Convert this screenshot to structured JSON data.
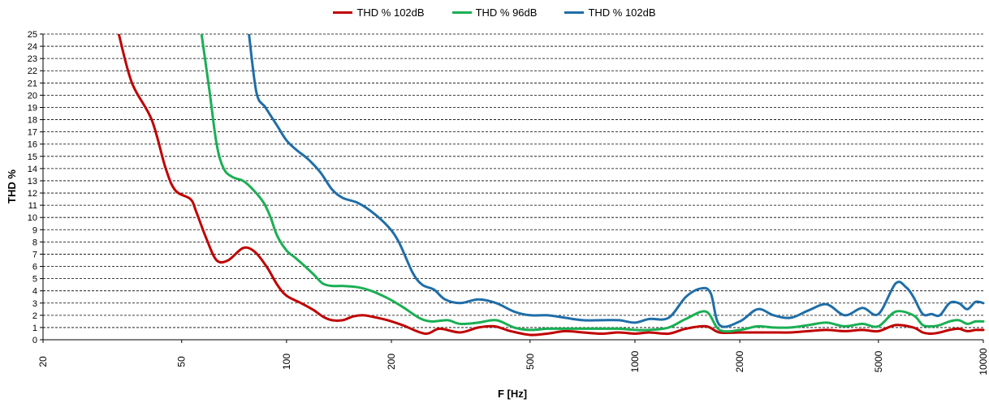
{
  "chart_data": {
    "type": "line",
    "xlabel": "F [Hz]",
    "ylabel": "THD %",
    "x_scale": "log",
    "xlim": [
      20,
      10000
    ],
    "ylim": [
      0,
      25
    ],
    "x_ticks": [
      20,
      50,
      100,
      200,
      500,
      1000,
      2000,
      5000,
      10000
    ],
    "y_ticks": [
      0,
      1,
      2,
      3,
      4,
      5,
      6,
      7,
      8,
      9,
      10,
      11,
      12,
      13,
      14,
      15,
      16,
      17,
      18,
      19,
      20,
      21,
      22,
      23,
      24,
      25
    ],
    "grid": "horizontal dashed",
    "legend_position": "top-center",
    "series": [
      {
        "name": "THD % 102dB",
        "color": "#c00000",
        "points": [
          [
            33,
            25
          ],
          [
            36,
            21
          ],
          [
            41,
            18
          ],
          [
            45,
            14
          ],
          [
            48,
            12.2
          ],
          [
            53,
            11.5
          ],
          [
            55,
            10.5
          ],
          [
            59,
            8.2
          ],
          [
            63,
            6.5
          ],
          [
            68,
            6.5
          ],
          [
            75,
            7.5
          ],
          [
            81,
            7.2
          ],
          [
            88,
            5.9
          ],
          [
            94,
            4.5
          ],
          [
            100,
            3.6
          ],
          [
            110,
            3.0
          ],
          [
            120,
            2.4
          ],
          [
            127,
            1.9
          ],
          [
            135,
            1.6
          ],
          [
            145,
            1.6
          ],
          [
            155,
            1.9
          ],
          [
            165,
            2.0
          ],
          [
            175,
            1.9
          ],
          [
            195,
            1.6
          ],
          [
            215,
            1.2
          ],
          [
            250,
            0.5
          ],
          [
            275,
            0.9
          ],
          [
            315,
            0.6
          ],
          [
            355,
            1.0
          ],
          [
            395,
            1.1
          ],
          [
            440,
            0.7
          ],
          [
            500,
            0.4
          ],
          [
            560,
            0.5
          ],
          [
            630,
            0.7
          ],
          [
            710,
            0.6
          ],
          [
            800,
            0.5
          ],
          [
            900,
            0.6
          ],
          [
            1000,
            0.5
          ],
          [
            1100,
            0.6
          ],
          [
            1250,
            0.5
          ],
          [
            1400,
            0.9
          ],
          [
            1600,
            1.1
          ],
          [
            1750,
            0.6
          ],
          [
            2000,
            0.6
          ],
          [
            2250,
            0.6
          ],
          [
            2500,
            0.6
          ],
          [
            2800,
            0.6
          ],
          [
            3150,
            0.7
          ],
          [
            3550,
            0.8
          ],
          [
            4000,
            0.7
          ],
          [
            4500,
            0.8
          ],
          [
            5000,
            0.7
          ],
          [
            5600,
            1.2
          ],
          [
            6300,
            1.0
          ],
          [
            6700,
            0.6
          ],
          [
            7100,
            0.5
          ],
          [
            7500,
            0.6
          ],
          [
            8000,
            0.8
          ],
          [
            8500,
            0.9
          ],
          [
            9000,
            0.7
          ],
          [
            9500,
            0.8
          ],
          [
            10000,
            0.8
          ]
        ]
      },
      {
        "name": "THD % 96dB",
        "color": "#1aaf54",
        "points": [
          [
            57,
            25
          ],
          [
            60,
            20.5
          ],
          [
            63,
            16
          ],
          [
            66,
            14
          ],
          [
            70,
            13.3
          ],
          [
            75,
            13.0
          ],
          [
            80,
            12.3
          ],
          [
            86,
            11.2
          ],
          [
            90,
            10
          ],
          [
            94,
            8.5
          ],
          [
            100,
            7.3
          ],
          [
            106,
            6.7
          ],
          [
            113,
            6.0
          ],
          [
            120,
            5.3
          ],
          [
            127,
            4.6
          ],
          [
            135,
            4.4
          ],
          [
            145,
            4.4
          ],
          [
            160,
            4.3
          ],
          [
            175,
            4.0
          ],
          [
            195,
            3.4
          ],
          [
            215,
            2.7
          ],
          [
            240,
            1.8
          ],
          [
            260,
            1.5
          ],
          [
            290,
            1.6
          ],
          [
            315,
            1.3
          ],
          [
            355,
            1.4
          ],
          [
            400,
            1.6
          ],
          [
            450,
            1.0
          ],
          [
            500,
            0.8
          ],
          [
            560,
            0.9
          ],
          [
            630,
            0.9
          ],
          [
            710,
            0.9
          ],
          [
            800,
            0.9
          ],
          [
            900,
            0.9
          ],
          [
            1000,
            0.8
          ],
          [
            1100,
            0.8
          ],
          [
            1250,
            1.0
          ],
          [
            1400,
            1.7
          ],
          [
            1600,
            2.3
          ],
          [
            1750,
            0.8
          ],
          [
            2000,
            0.8
          ],
          [
            2250,
            1.1
          ],
          [
            2500,
            1.0
          ],
          [
            2800,
            1.0
          ],
          [
            3150,
            1.2
          ],
          [
            3550,
            1.4
          ],
          [
            4000,
            1.1
          ],
          [
            4500,
            1.3
          ],
          [
            5000,
            1.1
          ],
          [
            5600,
            2.3
          ],
          [
            6300,
            2.0
          ],
          [
            6700,
            1.2
          ],
          [
            7100,
            1.1
          ],
          [
            7500,
            1.2
          ],
          [
            8000,
            1.5
          ],
          [
            8500,
            1.6
          ],
          [
            9000,
            1.3
          ],
          [
            9500,
            1.5
          ],
          [
            10000,
            1.5
          ]
        ]
      },
      {
        "name": "THD % 102dB",
        "color": "#1f6ea8",
        "points": [
          [
            78,
            25
          ],
          [
            82,
            20.2
          ],
          [
            87,
            19
          ],
          [
            94,
            17.5
          ],
          [
            100,
            16.3
          ],
          [
            107,
            15.5
          ],
          [
            115,
            14.8
          ],
          [
            125,
            13.7
          ],
          [
            135,
            12.3
          ],
          [
            145,
            11.6
          ],
          [
            160,
            11.2
          ],
          [
            175,
            10.5
          ],
          [
            195,
            9.3
          ],
          [
            210,
            8.0
          ],
          [
            230,
            5.5
          ],
          [
            245,
            4.5
          ],
          [
            265,
            4.1
          ],
          [
            285,
            3.3
          ],
          [
            315,
            3.0
          ],
          [
            355,
            3.3
          ],
          [
            400,
            3.0
          ],
          [
            450,
            2.3
          ],
          [
            500,
            2.0
          ],
          [
            560,
            2.0
          ],
          [
            630,
            1.8
          ],
          [
            710,
            1.6
          ],
          [
            800,
            1.6
          ],
          [
            900,
            1.6
          ],
          [
            1000,
            1.4
          ],
          [
            1100,
            1.7
          ],
          [
            1250,
            1.8
          ],
          [
            1400,
            3.5
          ],
          [
            1550,
            4.2
          ],
          [
            1650,
            3.8
          ],
          [
            1750,
            1.2
          ],
          [
            2000,
            1.5
          ],
          [
            2250,
            2.5
          ],
          [
            2500,
            2.0
          ],
          [
            2800,
            1.8
          ],
          [
            3150,
            2.4
          ],
          [
            3550,
            2.9
          ],
          [
            4000,
            2.0
          ],
          [
            4500,
            2.6
          ],
          [
            5000,
            2.1
          ],
          [
            5600,
            4.6
          ],
          [
            6000,
            4.3
          ],
          [
            6300,
            3.5
          ],
          [
            6700,
            2.1
          ],
          [
            7100,
            2.1
          ],
          [
            7500,
            2.0
          ],
          [
            8000,
            3.0
          ],
          [
            8500,
            3.0
          ],
          [
            9000,
            2.5
          ],
          [
            9500,
            3.1
          ],
          [
            10000,
            3.0
          ]
        ]
      }
    ]
  }
}
